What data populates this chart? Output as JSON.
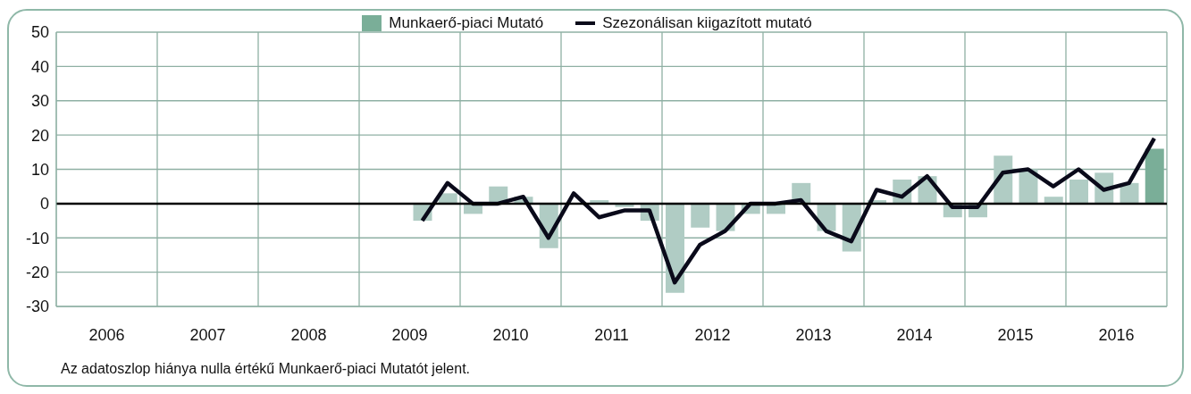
{
  "chart_data": {
    "type": "bar",
    "annotations": [
      "Az adatoszlop hiánya nulla értékű Munkaerő-piaci Mutatót jelent."
    ],
    "x": [
      2009.625,
      2009.875,
      2010.125,
      2010.375,
      2010.625,
      2010.875,
      2011.125,
      2011.375,
      2011.625,
      2011.875,
      2012.125,
      2012.375,
      2012.625,
      2012.875,
      2013.125,
      2013.375,
      2013.625,
      2013.875,
      2014.125,
      2014.375,
      2014.625,
      2014.875,
      2015.125,
      2015.375,
      2015.625,
      2015.875,
      2016.125,
      2016.375,
      2016.625,
      2016.875
    ],
    "series": [
      {
        "name": "Munkaerő-piaci Mutató",
        "color": "#b0ccc4",
        "colors": [
          "#b0ccc4",
          "#b0ccc4",
          "#b0ccc4",
          "#b0ccc4",
          "#b0ccc4",
          "#b0ccc4",
          "#b0ccc4",
          "#b0ccc4",
          "#b0ccc4",
          "#b0ccc4",
          "#b0ccc4",
          "#b0ccc4",
          "#b0ccc4",
          "#b0ccc4",
          "#b0ccc4",
          "#b0ccc4",
          "#b0ccc4",
          "#b0ccc4",
          "#b0ccc4",
          "#b0ccc4",
          "#b0ccc4",
          "#b0ccc4",
          "#b0ccc4",
          "#b0ccc4",
          "#b0ccc4",
          "#b0ccc4",
          "#b0ccc4",
          "#b0ccc4",
          "#b0ccc4",
          "#7aae98"
        ],
        "values": [
          -5,
          3,
          -3,
          5,
          2,
          -13,
          0,
          1,
          -1,
          -5,
          -26,
          -7,
          -8,
          -3,
          -3,
          6,
          -8,
          -14,
          1,
          7,
          8,
          -4,
          -4,
          14,
          10,
          2,
          7,
          9,
          6,
          16
        ]
      },
      {
        "name": "Szezonálisan kiigazított mutató",
        "type": "line",
        "color": "#0a0a1a",
        "values": [
          -5,
          6,
          0,
          0,
          2,
          -10,
          3,
          -4,
          -2,
          -2,
          -23,
          -12,
          -8,
          0,
          0,
          1,
          -8,
          -11,
          4,
          2,
          8,
          -1,
          -1,
          9,
          10,
          5,
          10,
          4,
          6,
          19
        ]
      }
    ],
    "xlim": [
      2006,
      2017
    ],
    "xticks": [
      {
        "value": 2006,
        "label": null
      },
      {
        "value": 2006.5,
        "label": "2006"
      },
      {
        "value": 2007,
        "label": null
      },
      {
        "value": 2007.5,
        "label": "2007"
      },
      {
        "value": 2008,
        "label": null
      },
      {
        "value": 2008.5,
        "label": "2008"
      },
      {
        "value": 2009,
        "label": null
      },
      {
        "value": 2009.5,
        "label": "2009"
      },
      {
        "value": 2010,
        "label": null
      },
      {
        "value": 2010.5,
        "label": "2010"
      },
      {
        "value": 2011,
        "label": null
      },
      {
        "value": 2011.5,
        "label": "2011"
      },
      {
        "value": 2012,
        "label": null
      },
      {
        "value": 2012.5,
        "label": "2012"
      },
      {
        "value": 2013,
        "label": null
      },
      {
        "value": 2013.5,
        "label": "2013"
      },
      {
        "value": 2014,
        "label": null
      },
      {
        "value": 2014.5,
        "label": "2014"
      },
      {
        "value": 2015,
        "label": null
      },
      {
        "value": 2015.5,
        "label": "2015"
      },
      {
        "value": 2016,
        "label": null
      },
      {
        "value": 2016.5,
        "label": "2016"
      },
      {
        "value": 2017,
        "label": null
      }
    ],
    "ylim": [
      -30,
      50
    ],
    "yticks": [
      -30,
      -20,
      -10,
      0,
      10,
      20,
      30,
      40,
      50
    ],
    "ref_lines": [
      {
        "axis": "y",
        "value": 0,
        "color": "#000000"
      }
    ],
    "grid": true,
    "legend": "top",
    "marker": "none",
    "line_style": "solid"
  }
}
